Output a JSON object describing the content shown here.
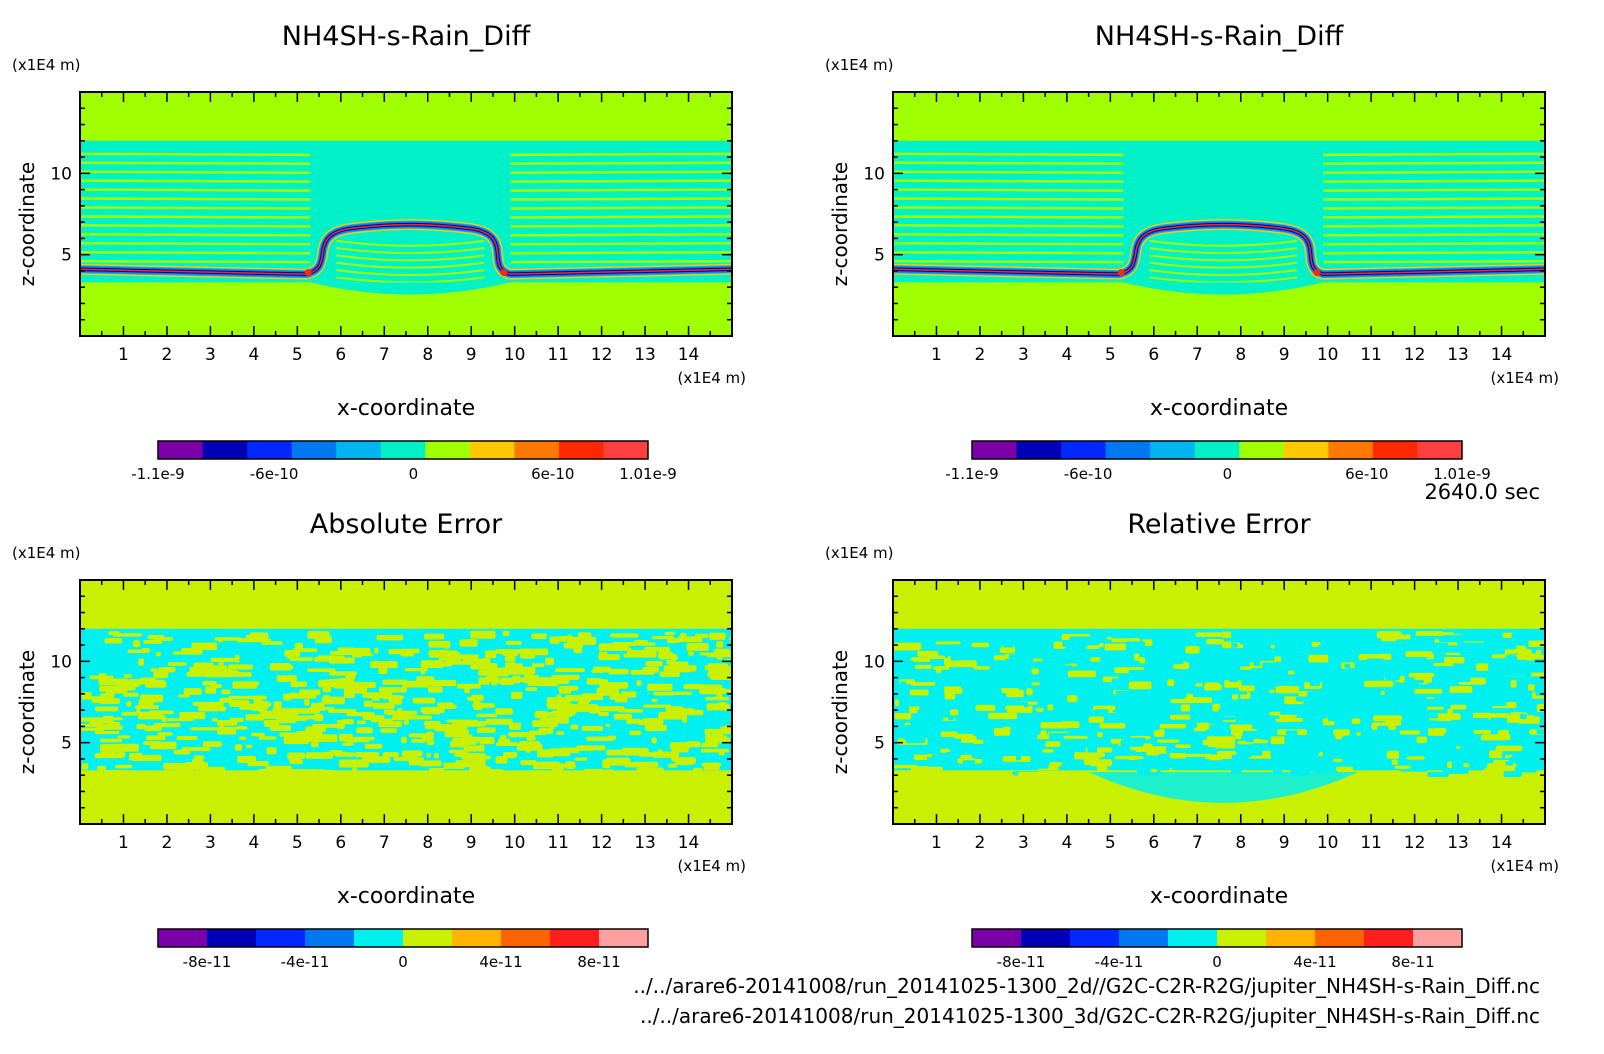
{
  "time_label": "2640.0 sec",
  "file_paths": [
    "../../arare6-20141008/run_20141025-1300_2d//G2C-C2R-R2G/jupiter_NH4SH-s-Rain_Diff.nc",
    "../../arare6-20141008/run_20141025-1300_3d/G2C-C2R-R2G/jupiter_NH4SH-s-Rain_Diff.nc"
  ],
  "chart_data": [
    {
      "type": "heatmap",
      "title": "NH4SH-s-Rain_Diff",
      "xlabel": "x-coordinate",
      "ylabel": "z-coordinate",
      "x_unit": "(x1E4 m)",
      "y_unit": "(x1E4 m)",
      "xlim": [
        0,
        15
      ],
      "ylim": [
        0,
        15
      ],
      "x_ticks": [
        "1",
        "2",
        "3",
        "4",
        "5",
        "6",
        "7",
        "8",
        "9",
        "10",
        "11",
        "12",
        "13",
        "14"
      ],
      "y_ticks": [
        "5",
        "10"
      ],
      "colorbar": {
        "colors": [
          "#7b00a8",
          "#0000b4",
          "#0028ff",
          "#0078f0",
          "#00b4f0",
          "#00f0c8",
          "#a0ff00",
          "#ffc800",
          "#ff7800",
          "#ff2800",
          "#ff4040"
        ],
        "labels": [
          "-1.1e-9",
          "-6e-10",
          "0",
          "6e-10",
          "1.01e-9"
        ],
        "label_positions": [
          -1.1e-09,
          -6e-10,
          0,
          6e-10,
          1.01e-09
        ],
        "range": [
          -1.1e-09,
          1.01e-09
        ]
      }
    },
    {
      "type": "heatmap",
      "title": "NH4SH-s-Rain_Diff",
      "xlabel": "x-coordinate",
      "ylabel": "z-coordinate",
      "x_unit": "(x1E4 m)",
      "y_unit": "(x1E4 m)",
      "xlim": [
        0,
        15
      ],
      "ylim": [
        0,
        15
      ],
      "x_ticks": [
        "1",
        "2",
        "3",
        "4",
        "5",
        "6",
        "7",
        "8",
        "9",
        "10",
        "11",
        "12",
        "13",
        "14"
      ],
      "y_ticks": [
        "5",
        "10"
      ],
      "colorbar": {
        "colors": [
          "#7b00a8",
          "#0000b4",
          "#0028ff",
          "#0078f0",
          "#00b4f0",
          "#00f0c8",
          "#a0ff00",
          "#ffc800",
          "#ff7800",
          "#ff2800",
          "#ff4040"
        ],
        "labels": [
          "-1.1e-9",
          "-6e-10",
          "0",
          "6e-10",
          "1.01e-9"
        ],
        "label_positions": [
          -1.1e-09,
          -6e-10,
          0,
          6e-10,
          1.01e-09
        ],
        "range": [
          -1.1e-09,
          1.01e-09
        ]
      }
    },
    {
      "type": "heatmap",
      "title": "Absolute Error",
      "xlabel": "x-coordinate",
      "ylabel": "z-coordinate",
      "x_unit": "(x1E4 m)",
      "y_unit": "(x1E4 m)",
      "xlim": [
        0,
        15
      ],
      "ylim": [
        0,
        15
      ],
      "x_ticks": [
        "1",
        "2",
        "3",
        "4",
        "5",
        "6",
        "7",
        "8",
        "9",
        "10",
        "11",
        "12",
        "13",
        "14"
      ],
      "y_ticks": [
        "5",
        "10"
      ],
      "colorbar": {
        "colors": [
          "#7b00a8",
          "#0000b4",
          "#0028ff",
          "#0078f0",
          "#00f0f0",
          "#c8f000",
          "#ffb400",
          "#ff6400",
          "#ff1e1e",
          "#ffa0a0"
        ],
        "labels": [
          "-8e-11",
          "-4e-11",
          "0",
          "4e-11",
          "8e-11"
        ],
        "label_positions": [
          -8e-11,
          -4e-11,
          0,
          4e-11,
          8e-11
        ],
        "range": [
          -1e-10,
          1e-10
        ]
      }
    },
    {
      "type": "heatmap",
      "title": "Relative Error",
      "xlabel": "x-coordinate",
      "ylabel": "z-coordinate",
      "x_unit": "(x1E4 m)",
      "y_unit": "(x1E4 m)",
      "xlim": [
        0,
        15
      ],
      "ylim": [
        0,
        15
      ],
      "x_ticks": [
        "1",
        "2",
        "3",
        "4",
        "5",
        "6",
        "7",
        "8",
        "9",
        "10",
        "11",
        "12",
        "13",
        "14"
      ],
      "y_ticks": [
        "5",
        "10"
      ],
      "colorbar": {
        "colors": [
          "#7b00a8",
          "#0000b4",
          "#0028ff",
          "#0078f0",
          "#00f0f0",
          "#c8f000",
          "#ffb400",
          "#ff6400",
          "#ff1e1e",
          "#ffa0a0"
        ],
        "labels": [
          "-8e-11",
          "-4e-11",
          "0",
          "4e-11",
          "8e-11"
        ],
        "label_positions": [
          -8e-11,
          -4e-11,
          0,
          4e-11,
          8e-11
        ],
        "range": [
          -1e-10,
          1e-10
        ]
      }
    }
  ]
}
